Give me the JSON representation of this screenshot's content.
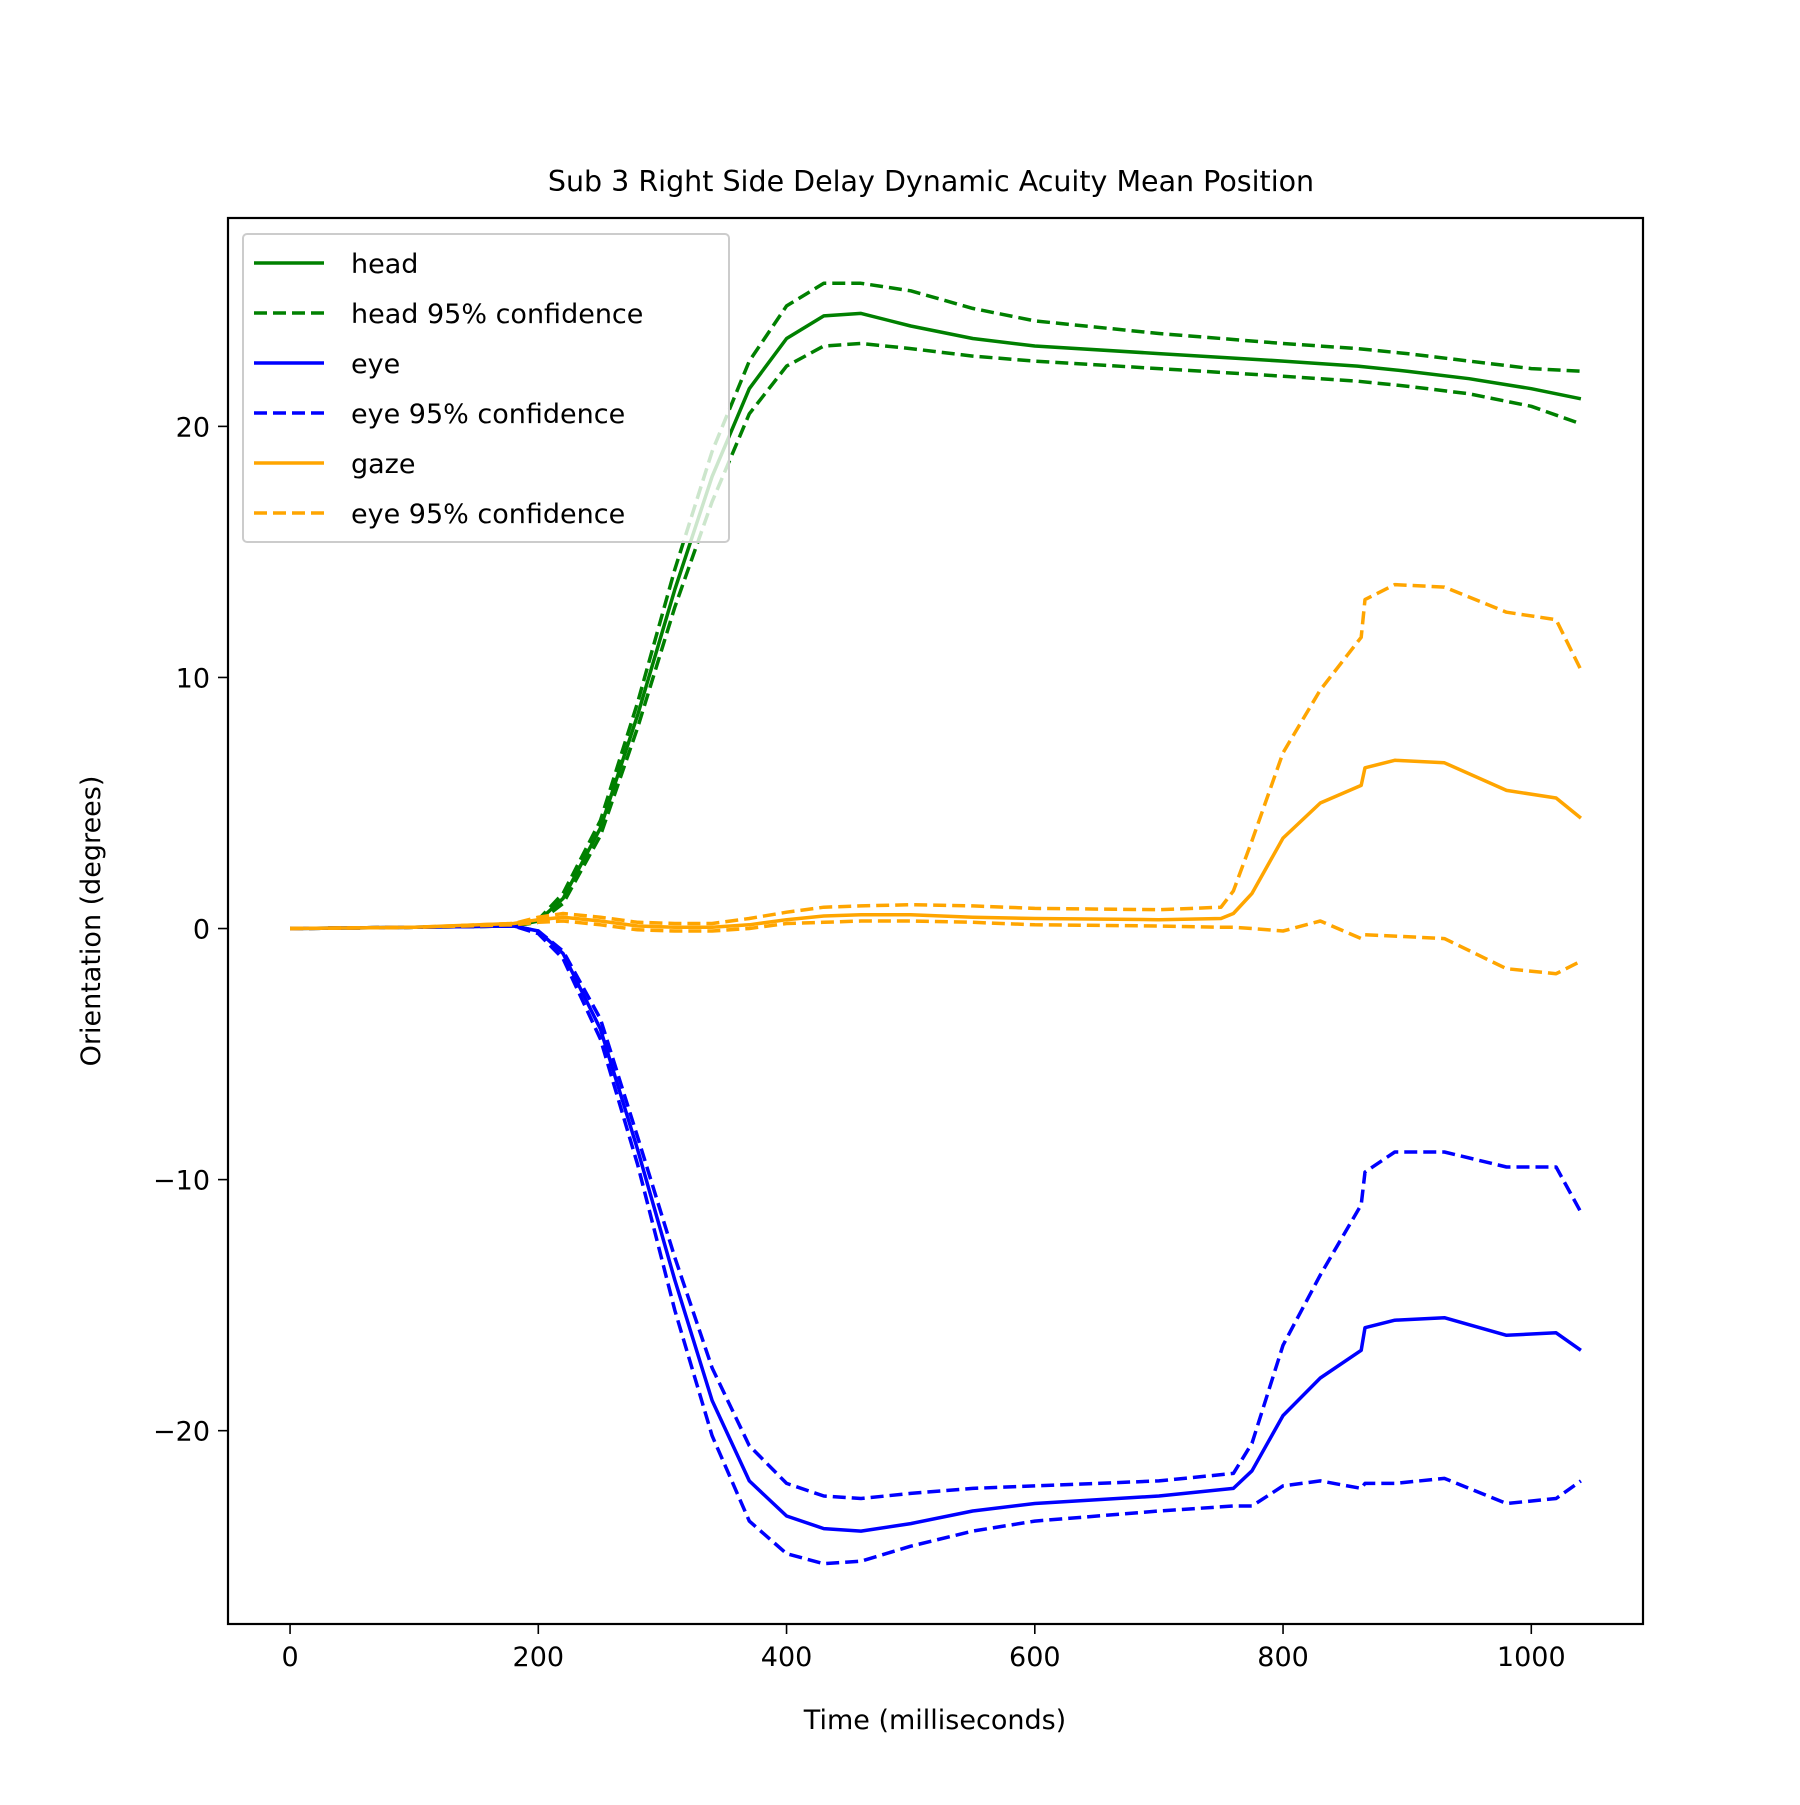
{
  "chart_data": {
    "type": "line",
    "title": "Sub 3 Right Side Delay Dynamic Acuity Mean Position",
    "xlabel": "Time (milliseconds)",
    "ylabel": "Orientation (degrees)",
    "xlim": [
      -50,
      1090
    ],
    "ylim": [
      -27.7,
      28.3
    ],
    "xticks": [
      0,
      200,
      400,
      600,
      800,
      1000
    ],
    "xtick_labels": [
      "0",
      "200",
      "400",
      "600",
      "800",
      "1000"
    ],
    "yticks": [
      -20,
      -10,
      0,
      10,
      20
    ],
    "ytick_labels": [
      "−20",
      "−10",
      "0",
      "10",
      "20"
    ],
    "grid": false,
    "legend_position": "upper-left",
    "series": [
      {
        "name": "head",
        "color": "#008000",
        "dash": "solid",
        "x": [
          0,
          100,
          180,
          200,
          220,
          250,
          280,
          310,
          340,
          370,
          400,
          430,
          460,
          500,
          550,
          600,
          700,
          800,
          860,
          900,
          950,
          1000,
          1040
        ],
        "y": [
          0,
          0.05,
          0.1,
          0.3,
          1.2,
          4.0,
          8.5,
          13.5,
          18.0,
          21.5,
          23.5,
          24.4,
          24.5,
          24.0,
          23.5,
          23.2,
          22.9,
          22.6,
          22.4,
          22.2,
          21.9,
          21.5,
          21.1
        ]
      },
      {
        "name": "head 95% confidence",
        "color": "#008000",
        "dash": "dashed",
        "x": [
          0,
          100,
          180,
          200,
          220,
          250,
          280,
          310,
          340,
          370,
          400,
          430,
          460,
          500,
          550,
          600,
          700,
          800,
          860,
          900,
          950,
          1000,
          1040
        ],
        "y": [
          0,
          0.05,
          0.1,
          0.35,
          1.4,
          4.3,
          9.0,
          14.3,
          19.0,
          22.6,
          24.8,
          25.7,
          25.7,
          25.4,
          24.7,
          24.2,
          23.7,
          23.3,
          23.1,
          22.9,
          22.6,
          22.3,
          22.2
        ]
      },
      {
        "name": "",
        "color": "#008000",
        "dash": "dashed",
        "x": [
          0,
          100,
          180,
          200,
          220,
          250,
          280,
          310,
          340,
          370,
          400,
          430,
          460,
          500,
          550,
          600,
          700,
          800,
          860,
          900,
          950,
          1000,
          1040
        ],
        "y": [
          0,
          0.05,
          0.1,
          0.25,
          1.0,
          3.7,
          8.0,
          12.8,
          17.0,
          20.5,
          22.4,
          23.2,
          23.3,
          23.1,
          22.8,
          22.6,
          22.3,
          22.0,
          21.8,
          21.6,
          21.3,
          20.8,
          20.1
        ]
      },
      {
        "name": "eye",
        "color": "#0000ff",
        "dash": "solid",
        "x": [
          0,
          100,
          180,
          200,
          220,
          250,
          280,
          310,
          340,
          370,
          400,
          430,
          460,
          500,
          550,
          600,
          700,
          760,
          775,
          800,
          830,
          863,
          866,
          890,
          930,
          980,
          1020,
          1040
        ],
        "y": [
          0,
          0.05,
          0.1,
          -0.1,
          -1.0,
          -4.0,
          -8.8,
          -14.0,
          -18.8,
          -22.0,
          -23.4,
          -23.9,
          -24.0,
          -23.7,
          -23.2,
          -22.9,
          -22.6,
          -22.3,
          -21.6,
          -19.4,
          -17.9,
          -16.8,
          -15.9,
          -15.6,
          -15.5,
          -16.2,
          -16.1,
          -16.8
        ]
      },
      {
        "name": "eye 95% confidence",
        "color": "#0000ff",
        "dash": "dashed",
        "x": [
          0,
          100,
          180,
          200,
          220,
          250,
          280,
          310,
          340,
          370,
          400,
          430,
          460,
          500,
          550,
          600,
          700,
          760,
          775,
          800,
          830,
          863,
          866,
          890,
          930,
          980,
          1020,
          1040
        ],
        "y": [
          0,
          0.05,
          0.1,
          -0.1,
          -0.9,
          -3.6,
          -8.3,
          -13.1,
          -17.5,
          -20.6,
          -22.1,
          -22.6,
          -22.7,
          -22.5,
          -22.3,
          -22.2,
          -22.0,
          -21.7,
          -20.5,
          -16.6,
          -13.8,
          -11.0,
          -9.7,
          -8.9,
          -8.9,
          -9.5,
          -9.5,
          -11.3
        ]
      },
      {
        "name": "",
        "color": "#0000ff",
        "dash": "dashed",
        "x": [
          0,
          100,
          180,
          200,
          220,
          250,
          280,
          310,
          340,
          370,
          400,
          430,
          460,
          500,
          550,
          600,
          700,
          760,
          775,
          800,
          830,
          863,
          866,
          890,
          930,
          980,
          1020,
          1040
        ],
        "y": [
          0,
          0.05,
          0.1,
          -0.2,
          -1.2,
          -4.4,
          -9.4,
          -15.2,
          -20.2,
          -23.6,
          -24.9,
          -25.3,
          -25.2,
          -24.6,
          -24.0,
          -23.6,
          -23.2,
          -23.0,
          -23.0,
          -22.2,
          -22.0,
          -22.3,
          -22.1,
          -22.1,
          -21.9,
          -22.9,
          -22.7,
          -22.0
        ]
      },
      {
        "name": "gaze",
        "color": "#ffa500",
        "dash": "solid",
        "x": [
          0,
          100,
          180,
          200,
          220,
          250,
          280,
          310,
          340,
          370,
          400,
          430,
          460,
          500,
          550,
          600,
          700,
          750,
          760,
          775,
          800,
          830,
          863,
          866,
          890,
          930,
          980,
          1020,
          1040
        ],
        "y": [
          0,
          0.05,
          0.2,
          0.35,
          0.45,
          0.3,
          0.1,
          0.05,
          0.05,
          0.15,
          0.35,
          0.5,
          0.55,
          0.55,
          0.45,
          0.4,
          0.35,
          0.4,
          0.6,
          1.4,
          3.6,
          5.0,
          5.7,
          6.4,
          6.7,
          6.6,
          5.5,
          5.2,
          4.4
        ]
      },
      {
        "name": "eye 95% confidence",
        "color": "#ffa500",
        "dash": "dashed",
        "x": [
          0,
          100,
          180,
          200,
          220,
          250,
          280,
          310,
          340,
          370,
          400,
          430,
          460,
          500,
          550,
          600,
          700,
          750,
          760,
          775,
          800,
          830,
          863,
          866,
          890,
          930,
          980,
          1020,
          1040
        ],
        "y": [
          0,
          0.05,
          0.2,
          0.45,
          0.6,
          0.45,
          0.25,
          0.2,
          0.2,
          0.4,
          0.65,
          0.85,
          0.9,
          0.95,
          0.9,
          0.8,
          0.75,
          0.85,
          1.5,
          3.5,
          7.0,
          9.5,
          11.6,
          13.1,
          13.7,
          13.6,
          12.6,
          12.3,
          10.3
        ]
      },
      {
        "name": "",
        "color": "#ffa500",
        "dash": "dashed",
        "x": [
          0,
          100,
          180,
          200,
          220,
          250,
          280,
          310,
          340,
          370,
          400,
          430,
          460,
          500,
          550,
          600,
          700,
          750,
          760,
          775,
          800,
          830,
          863,
          866,
          890,
          930,
          980,
          1020,
          1040
        ],
        "y": [
          0,
          0.05,
          0.15,
          0.25,
          0.3,
          0.15,
          -0.05,
          -0.1,
          -0.1,
          0.0,
          0.2,
          0.25,
          0.3,
          0.3,
          0.25,
          0.15,
          0.1,
          0.05,
          0.05,
          0.0,
          -0.1,
          0.3,
          -0.4,
          -0.25,
          -0.3,
          -0.4,
          -1.6,
          -1.8,
          -1.3
        ]
      }
    ],
    "legend": [
      {
        "label": "head",
        "color": "#008000",
        "dash": "solid"
      },
      {
        "label": "head 95% confidence",
        "color": "#008000",
        "dash": "dashed"
      },
      {
        "label": "eye",
        "color": "#0000ff",
        "dash": "solid"
      },
      {
        "label": "eye 95% confidence",
        "color": "#0000ff",
        "dash": "dashed"
      },
      {
        "label": "gaze",
        "color": "#ffa500",
        "dash": "solid"
      },
      {
        "label": "eye 95% confidence",
        "color": "#ffa500",
        "dash": "dashed"
      }
    ]
  }
}
